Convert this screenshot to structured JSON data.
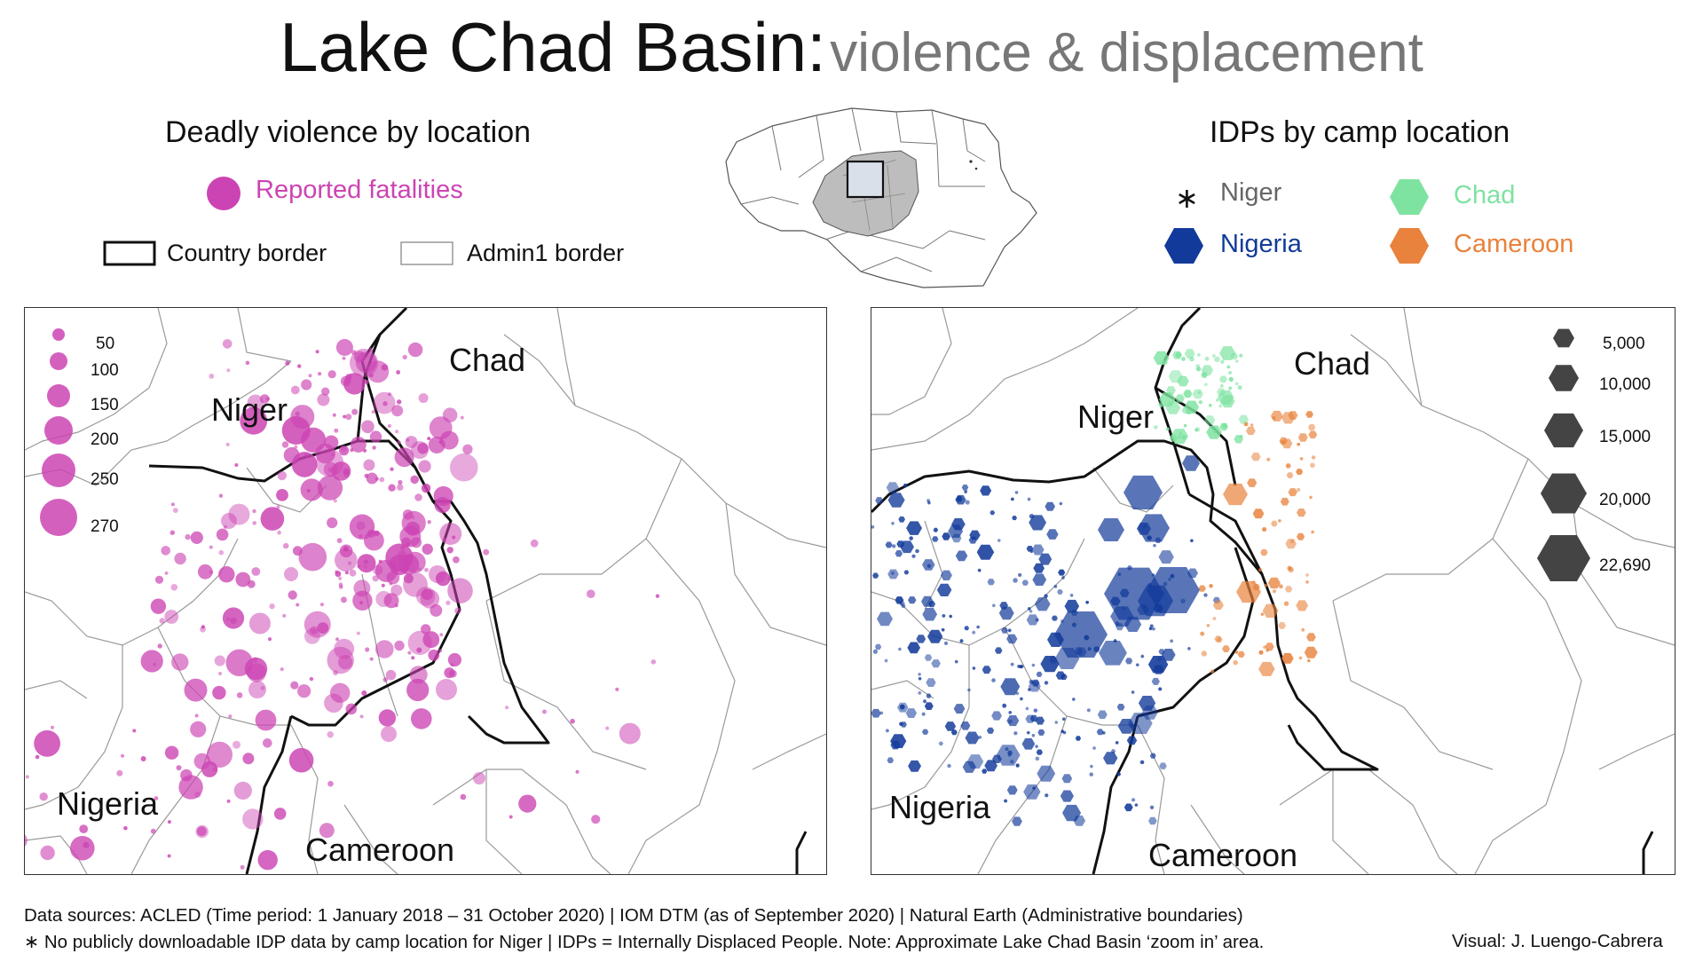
{
  "title": {
    "main": "Lake Chad Basin:",
    "sub": "violence & displacement"
  },
  "violence_legend": {
    "heading": "Deadly violence by location",
    "marker_label": "Reported fatalities",
    "marker_color": "#cc44b3",
    "country_border_label": "Country border",
    "admin_border_label": "Admin1 border"
  },
  "idp_legend": {
    "heading": "IDPs by camp location",
    "items": [
      {
        "name": "Niger",
        "symbol": "asterisk-icon",
        "color": "#666666"
      },
      {
        "name": "Chad",
        "symbol": "hexagon-icon",
        "color": "#7ee3a1"
      },
      {
        "name": "Nigeria",
        "symbol": "hexagon-icon",
        "color": "#123a9a"
      },
      {
        "name": "Cameroon",
        "symbol": "hexagon-icon",
        "color": "#e8823c"
      }
    ]
  },
  "left_map": {
    "countries": {
      "niger": "Niger",
      "chad": "Chad",
      "nigeria": "Nigeria",
      "cameroon": "Cameroon"
    },
    "size_legend": [
      "50",
      "100",
      "150",
      "200",
      "250",
      "270"
    ]
  },
  "right_map": {
    "countries": {
      "niger": "Niger",
      "chad": "Chad",
      "nigeria": "Nigeria",
      "cameroon": "Cameroon"
    },
    "size_legend": [
      "5,000",
      "10,000",
      "15,000",
      "20,000",
      "22,690"
    ]
  },
  "footer": {
    "sources": "Data sources: ACLED (Time period: 1 January 2018 – 31 October 2020) | IOM DTM (as of September 2020) | Natural Earth (Administrative boundaries)",
    "note": "∗ No publicly downloadable IDP data by camp location for Niger |  IDPs = Internally Displaced People. Note: Approximate Lake Chad Basin ‘zoom in’ area.",
    "credit": "Visual: J. Luengo-Cabrera"
  }
}
